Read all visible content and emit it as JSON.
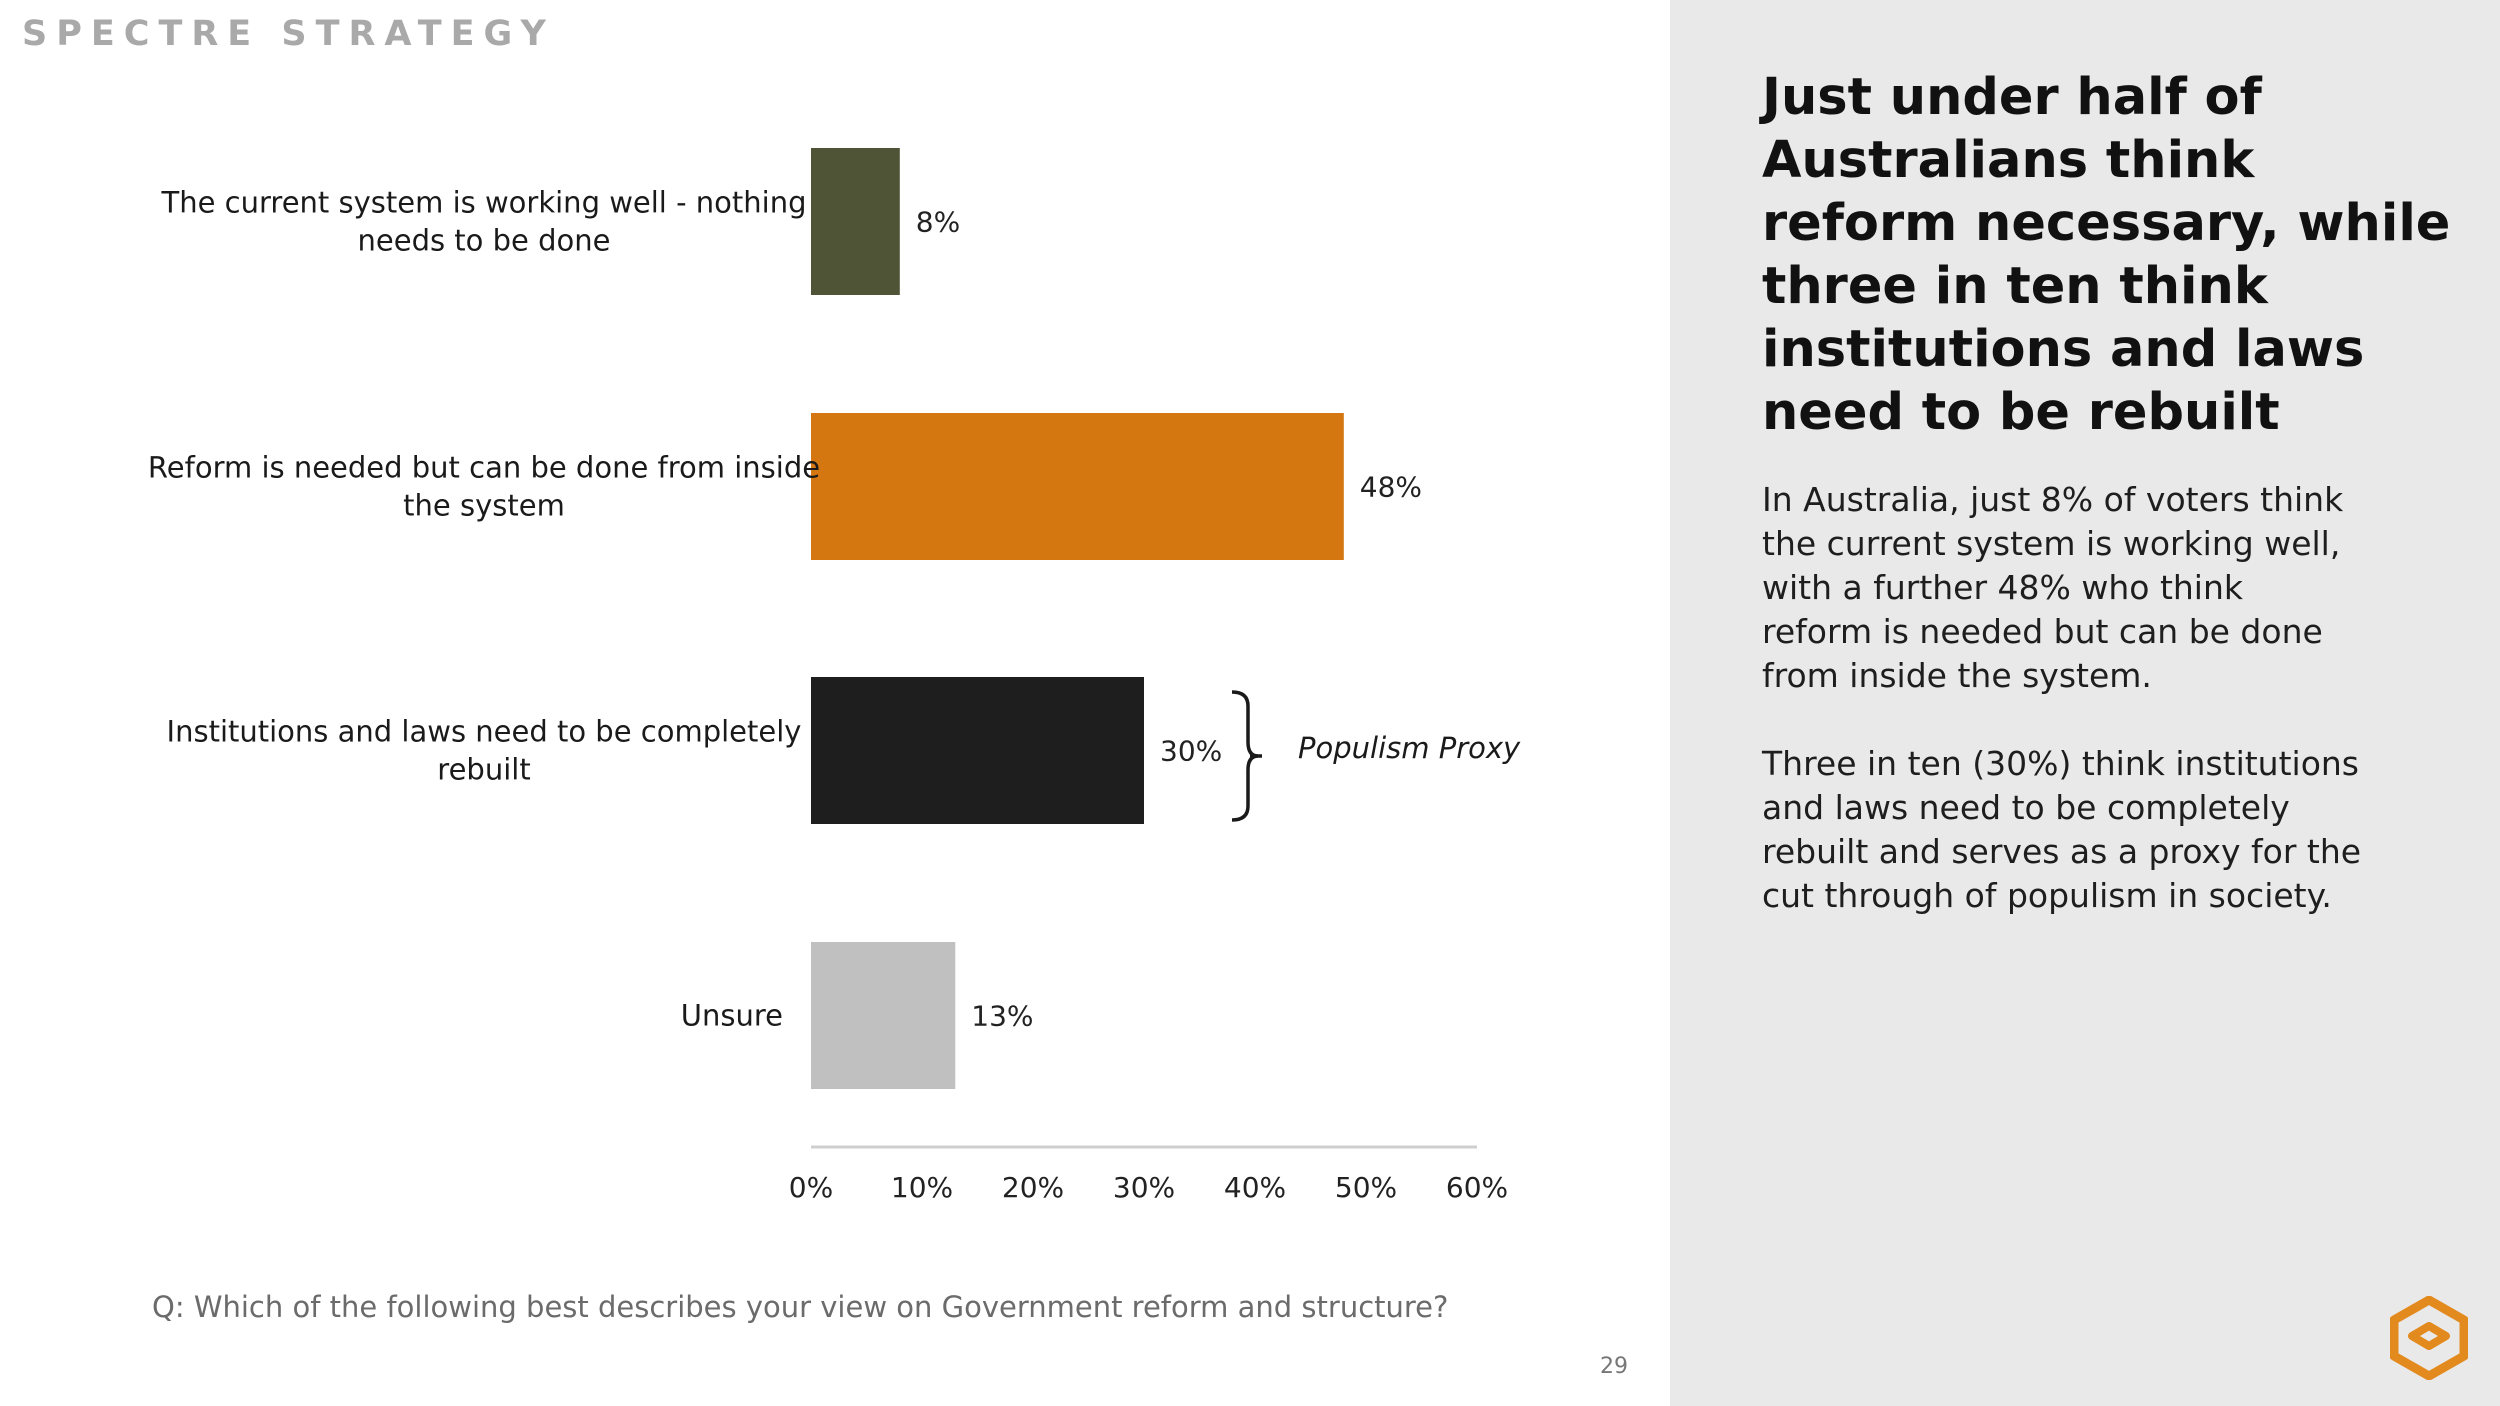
{
  "brand": "SPECTRE STRATEGY",
  "question": "Q: Which of the following best describes your view on Government reform and structure?",
  "page_number": "29",
  "panel": {
    "headline": "Just under half of Australians think reform necessary, while three in ten think institutions and laws need to be rebuilt",
    "paragraph1": "In Australia, just 8% of voters think the current system is working well, with a further 48% who think reform is needed but can be done from inside the system.",
    "paragraph2": "Three in ten (30%) think institutions and laws need to be completely rebuilt and serves as a proxy for the cut through of populism in society."
  },
  "colors": {
    "working_well": "#4f5436",
    "reform": "#d47711",
    "rebuild": "#1e1e1e",
    "unsure": "#c0c0c0",
    "accent": "#e38a1e"
  },
  "chart_data": {
    "type": "bar",
    "orientation": "horizontal",
    "categories": [
      [
        "The current system is working well - nothing",
        "needs to be done"
      ],
      [
        "Reform is needed but can be done from inside",
        "the system"
      ],
      [
        "Institutions and laws need to be completely",
        "rebuilt"
      ],
      [
        "Unsure"
      ]
    ],
    "values": [
      8,
      48,
      30,
      13
    ],
    "value_labels": [
      "8%",
      "48%",
      "30%",
      "13%"
    ],
    "xlim": [
      0,
      60
    ],
    "xticks": [
      "0%",
      "10%",
      "20%",
      "30%",
      "40%",
      "50%",
      "60%"
    ],
    "annotation": "Populism Proxy",
    "grid": false,
    "legend": "none"
  }
}
